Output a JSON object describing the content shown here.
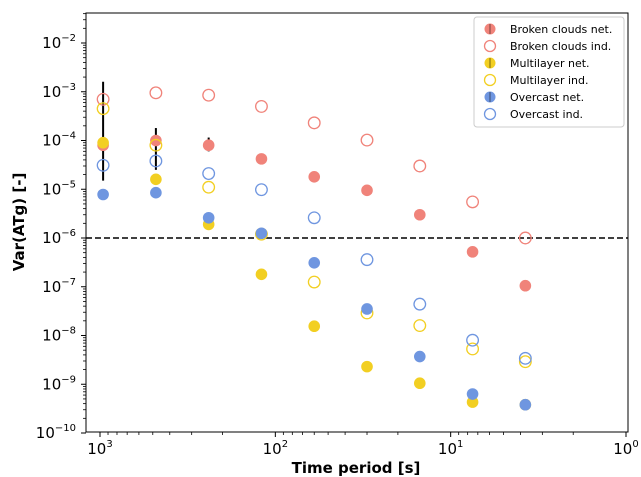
{
  "chart_data": {
    "type": "scatter",
    "title": "",
    "xlabel": "Time period [s]",
    "ylabel": "Var(ATg) [-]",
    "xscale": "log",
    "yscale": "log",
    "x_reversed": true,
    "xlim": [
      1200,
      1
    ],
    "ylim": [
      1e-10,
      0.1
    ],
    "x_ticks": [
      {
        "value": 1000,
        "base": "10",
        "exp": "3"
      },
      {
        "value": 100,
        "base": "10",
        "exp": "2"
      },
      {
        "value": 10,
        "base": "10",
        "exp": "1"
      },
      {
        "value": 1,
        "base": "10",
        "exp": "0"
      }
    ],
    "y_ticks": [
      {
        "value": 0.01,
        "base": "10",
        "exp": "−2"
      },
      {
        "value": 0.001,
        "base": "10",
        "exp": "−3"
      },
      {
        "value": 0.0001,
        "base": "10",
        "exp": "−4"
      },
      {
        "value": 1e-05,
        "base": "10",
        "exp": "−5"
      },
      {
        "value": 1e-06,
        "base": "10",
        "exp": "−6"
      },
      {
        "value": 1e-07,
        "base": "10",
        "exp": "−7"
      },
      {
        "value": 1e-08,
        "base": "10",
        "exp": "−8"
      },
      {
        "value": 1e-09,
        "base": "10",
        "exp": "−9"
      },
      {
        "value": 1e-10,
        "base": "10",
        "exp": "−10"
      }
    ],
    "grid": false,
    "legend_position": "top-right",
    "reference_line": {
      "y": 1e-06,
      "style": "dashed",
      "color": "#000000"
    },
    "series": [
      {
        "name": "Broken clouds net.",
        "color": "#f0837a",
        "filled": true,
        "points": [
          {
            "x": 960,
            "y": 8e-05,
            "err_lo": 1.5e-05,
            "err_hi": 0.0016
          },
          {
            "x": 480,
            "y": 0.0001,
            "err_lo": 2.5e-05,
            "err_hi": 0.00018
          },
          {
            "x": 240,
            "y": 8e-05,
            "err_lo": 6e-05,
            "err_hi": 0.000115
          },
          {
            "x": 120,
            "y": 4.2e-05
          },
          {
            "x": 60,
            "y": 1.8e-05
          },
          {
            "x": 30,
            "y": 9.5e-06
          },
          {
            "x": 15,
            "y": 3e-06
          },
          {
            "x": 7.5,
            "y": 5.2e-07
          },
          {
            "x": 3.75,
            "y": 1.05e-07
          }
        ]
      },
      {
        "name": "Broken clouds ind.",
        "color": "#f0837a",
        "filled": false,
        "points": [
          {
            "x": 960,
            "y": 0.0007
          },
          {
            "x": 480,
            "y": 0.00095
          },
          {
            "x": 240,
            "y": 0.00085
          },
          {
            "x": 120,
            "y": 0.0005
          },
          {
            "x": 60,
            "y": 0.00023
          },
          {
            "x": 30,
            "y": 0.000102
          },
          {
            "x": 15,
            "y": 3e-05
          },
          {
            "x": 7.5,
            "y": 5.5e-06
          },
          {
            "x": 3.75,
            "y": 1e-06
          }
        ]
      },
      {
        "name": "Multilayer net.",
        "color": "#f2cf22",
        "filled": true,
        "points": [
          {
            "x": 960,
            "y": 9e-05
          },
          {
            "x": 480,
            "y": 1.6e-05
          },
          {
            "x": 240,
            "y": 1.9e-06,
            "err_lo": 1.5e-06,
            "err_hi": 2.5e-06
          },
          {
            "x": 120,
            "y": 1.8e-07
          },
          {
            "x": 60,
            "y": 1.55e-08
          },
          {
            "x": 30,
            "y": 2.3e-09
          },
          {
            "x": 15,
            "y": 1.05e-09
          },
          {
            "x": 7.5,
            "y": 4.3e-10
          },
          {
            "x": 3.75,
            "y": 3.8e-10
          }
        ]
      },
      {
        "name": "Multilayer ind.",
        "color": "#f2cf22",
        "filled": false,
        "points": [
          {
            "x": 960,
            "y": 0.00045
          },
          {
            "x": 480,
            "y": 8e-05
          },
          {
            "x": 240,
            "y": 1.1e-05
          },
          {
            "x": 120,
            "y": 1.2e-06
          },
          {
            "x": 60,
            "y": 1.25e-07
          },
          {
            "x": 30,
            "y": 2.9e-08
          },
          {
            "x": 15,
            "y": 1.6e-08
          },
          {
            "x": 7.5,
            "y": 5.3e-09
          },
          {
            "x": 3.75,
            "y": 2.9e-09
          }
        ]
      },
      {
        "name": "Overcast net.",
        "color": "#6f96e0",
        "filled": true,
        "points": [
          {
            "x": 960,
            "y": 7.8e-06
          },
          {
            "x": 480,
            "y": 8.5e-06
          },
          {
            "x": 240,
            "y": 2.6e-06
          },
          {
            "x": 120,
            "y": 1.25e-06
          },
          {
            "x": 60,
            "y": 3.1e-07
          },
          {
            "x": 30,
            "y": 3.5e-08
          },
          {
            "x": 15,
            "y": 3.7e-09
          },
          {
            "x": 7.5,
            "y": 6.3e-10
          },
          {
            "x": 3.75,
            "y": 3.8e-10
          }
        ]
      },
      {
        "name": "Overcast ind.",
        "color": "#6f96e0",
        "filled": false,
        "points": [
          {
            "x": 960,
            "y": 3.1e-05
          },
          {
            "x": 480,
            "y": 3.8e-05
          },
          {
            "x": 240,
            "y": 2.1e-05
          },
          {
            "x": 120,
            "y": 9.8e-06
          },
          {
            "x": 60,
            "y": 2.6e-06
          },
          {
            "x": 30,
            "y": 3.6e-07
          },
          {
            "x": 15,
            "y": 4.4e-08
          },
          {
            "x": 7.5,
            "y": 8e-09
          },
          {
            "x": 3.75,
            "y": 3.4e-09
          }
        ]
      }
    ]
  }
}
